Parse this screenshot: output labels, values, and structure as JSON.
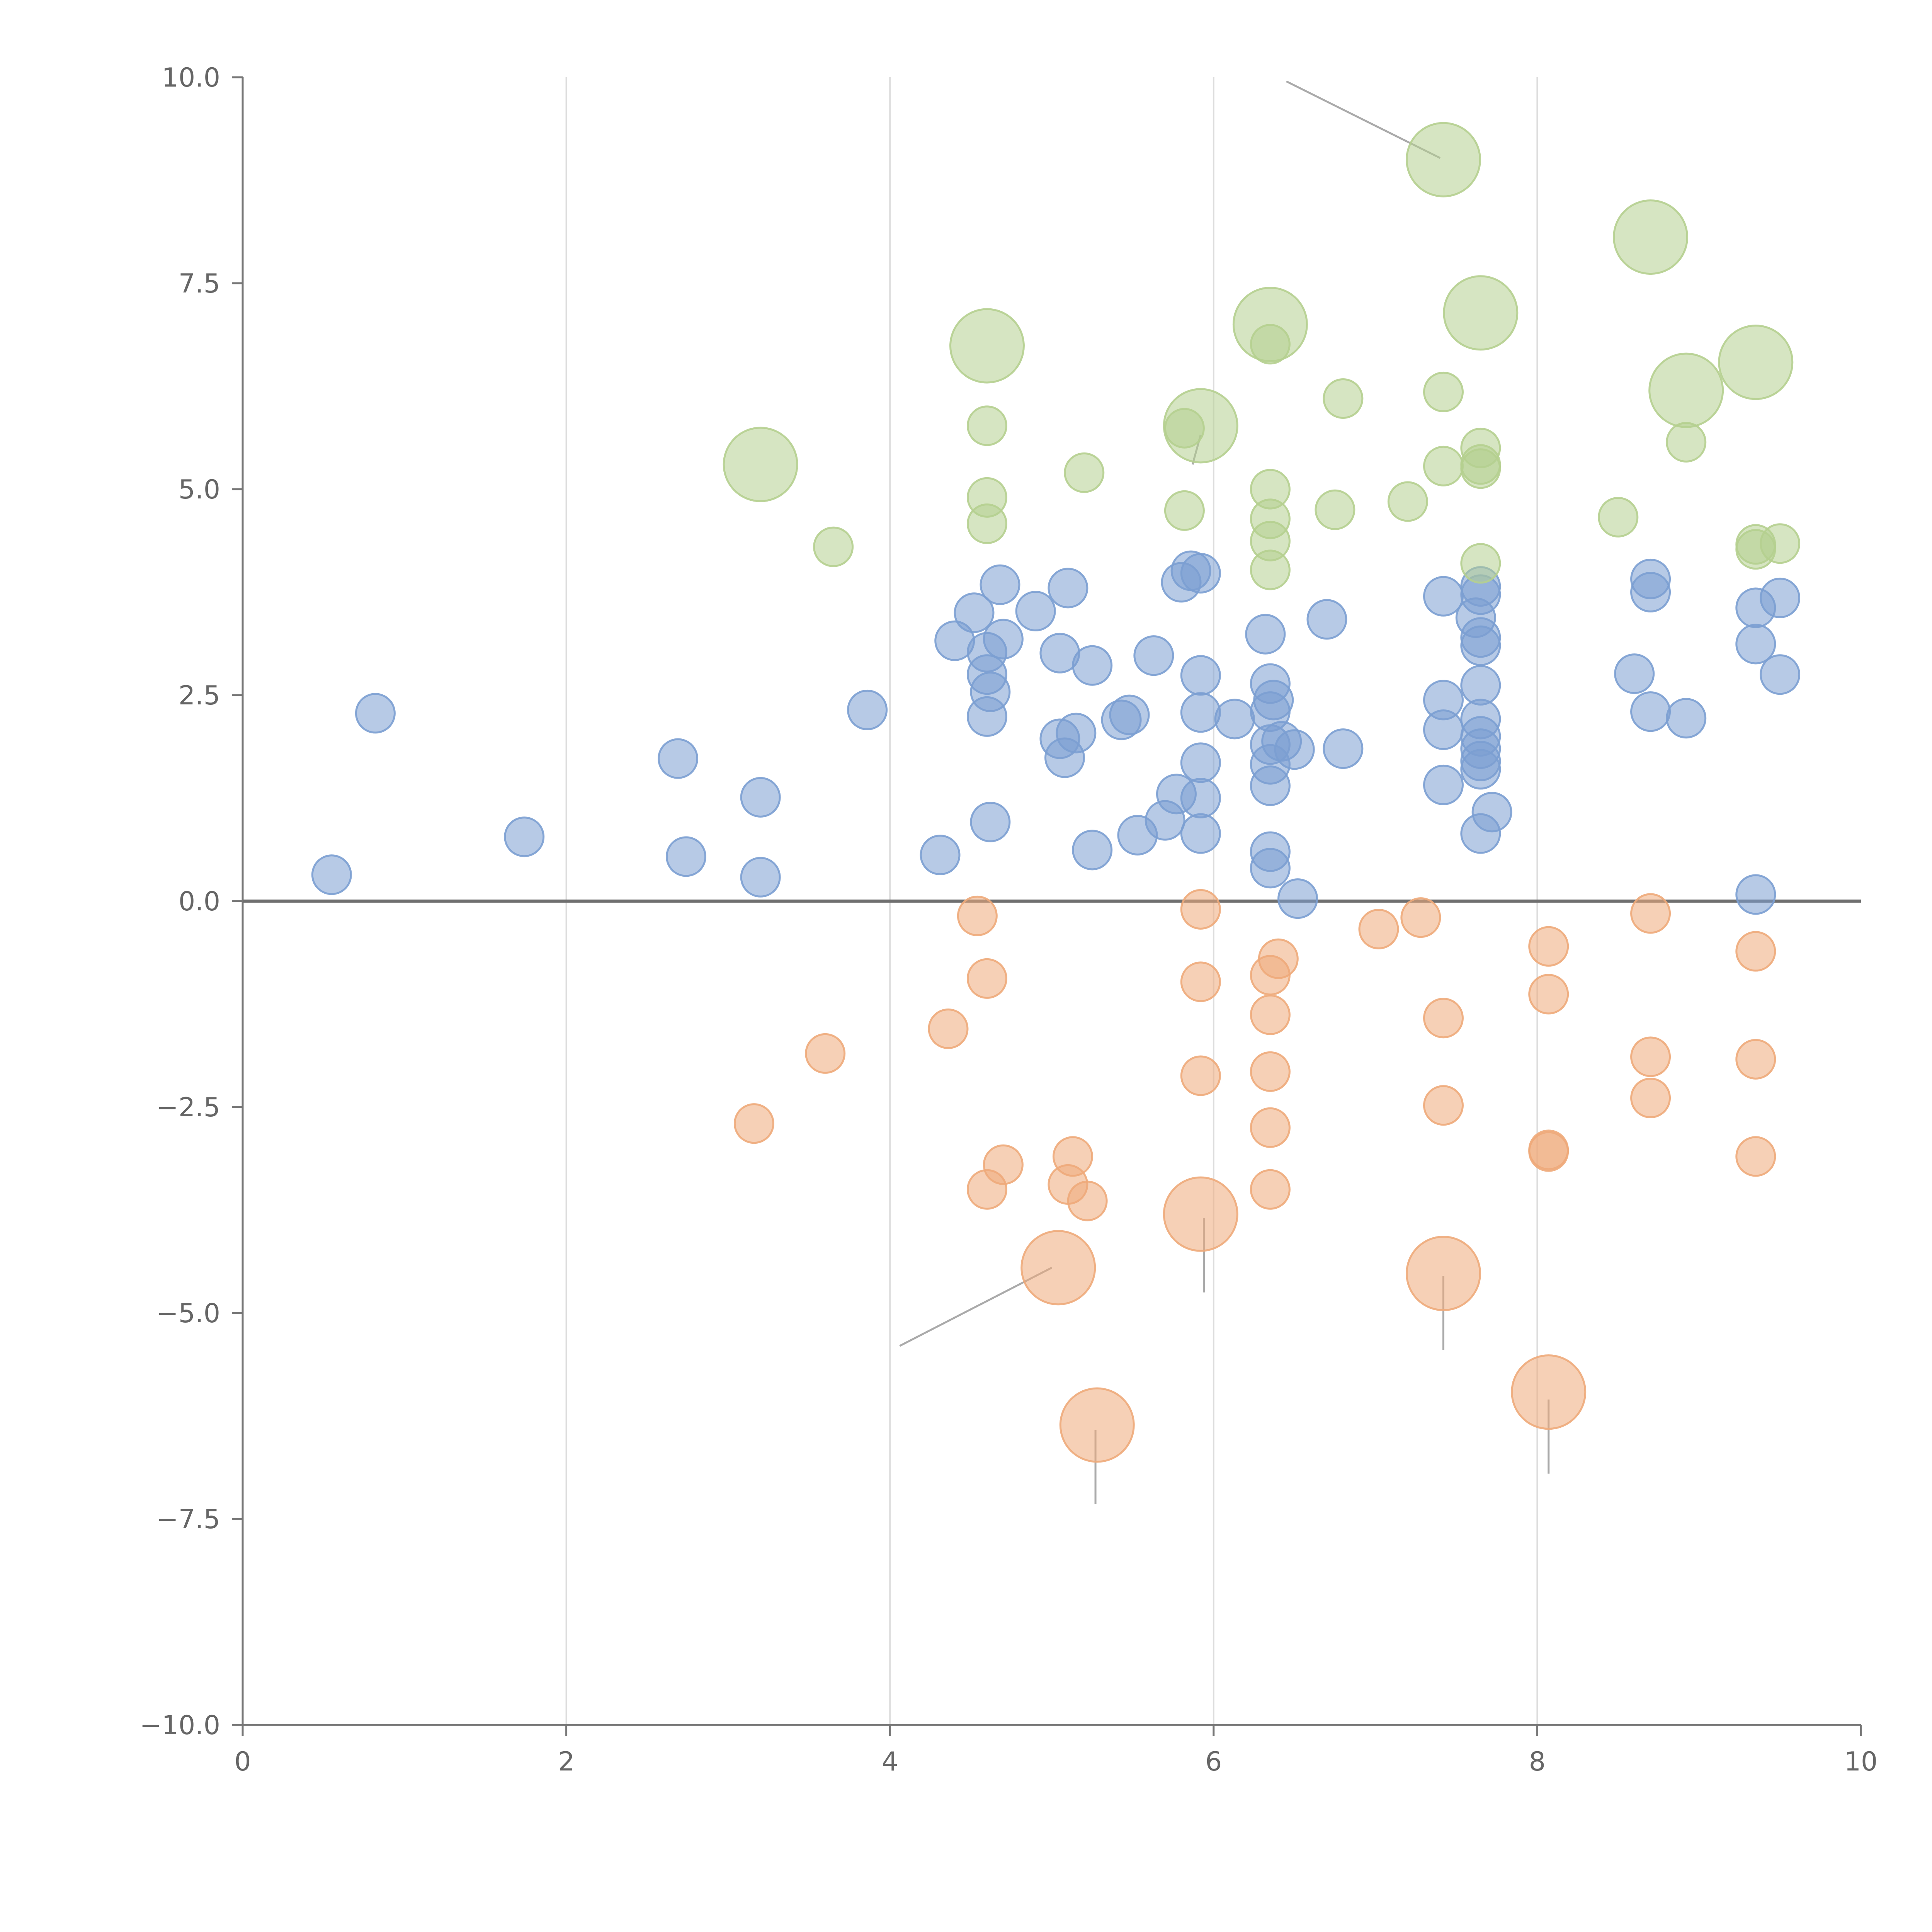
{
  "chart_data": {
    "type": "scatter",
    "title": "",
    "xlabel": "",
    "ylabel": "",
    "xlim": [
      0,
      10
    ],
    "ylim": [
      -10,
      10
    ],
    "x_ticks": [
      {
        "value": 0,
        "label": "0"
      },
      {
        "value": 2,
        "label": "2"
      },
      {
        "value": 4,
        "label": "4"
      },
      {
        "value": 6,
        "label": "6"
      },
      {
        "value": 8,
        "label": "8"
      },
      {
        "value": 10,
        "label": "10"
      }
    ],
    "y_ticks": [
      {
        "value": 10,
        "label": "10.0"
      },
      {
        "value": 7.5,
        "label": "7.5"
      },
      {
        "value": 5,
        "label": "5.0"
      },
      {
        "value": 2.5,
        "label": "2.5"
      },
      {
        "value": 0,
        "label": "0.0"
      },
      {
        "value": -2.5,
        "label": "−2.5"
      },
      {
        "value": -5,
        "label": "−5.0"
      },
      {
        "value": -7.5,
        "label": "−7.5"
      },
      {
        "value": -10,
        "label": "−10.0"
      }
    ],
    "grid": {
      "vertical": true,
      "horizontal": false,
      "zero_line": true
    },
    "series": [
      {
        "name": "blue",
        "color": "#7b9fd2",
        "size_unit": 1,
        "points": [
          [
            0.55,
            0.32
          ],
          [
            0.82,
            2.28
          ],
          [
            1.74,
            0.78
          ],
          [
            2.69,
            1.73
          ],
          [
            2.74,
            0.54
          ],
          [
            3.2,
            1.26
          ],
          [
            3.2,
            0.29
          ],
          [
            3.86,
            2.32
          ],
          [
            4.31,
            0.56
          ],
          [
            4.4,
            3.16
          ],
          [
            4.52,
            3.5
          ],
          [
            4.6,
            3.02
          ],
          [
            4.6,
            2.75
          ],
          [
            4.62,
            2.54
          ],
          [
            4.6,
            2.24
          ],
          [
            4.62,
            0.96
          ],
          [
            4.68,
            3.84
          ],
          [
            4.7,
            3.18
          ],
          [
            4.9,
            3.52
          ],
          [
            5.05,
            3.01
          ],
          [
            5.05,
            1.97
          ],
          [
            5.08,
            1.74
          ],
          [
            5.1,
            3.8
          ],
          [
            5.15,
            2.04
          ],
          [
            5.25,
            2.86
          ],
          [
            5.25,
            0.62
          ],
          [
            5.43,
            2.2
          ],
          [
            5.48,
            2.26
          ],
          [
            5.53,
            0.8
          ],
          [
            5.63,
            2.98
          ],
          [
            5.7,
            0.98
          ],
          [
            5.77,
            1.3
          ],
          [
            5.8,
            3.87
          ],
          [
            5.86,
            4.01
          ],
          [
            5.92,
            3.98
          ],
          [
            5.92,
            2.74
          ],
          [
            5.92,
            2.29
          ],
          [
            5.92,
            1.68
          ],
          [
            5.92,
            1.25
          ],
          [
            5.92,
            0.82
          ],
          [
            6.13,
            2.21
          ],
          [
            6.32,
            3.24
          ],
          [
            6.35,
            2.64
          ],
          [
            6.37,
            2.44
          ],
          [
            6.35,
            2.3
          ],
          [
            6.35,
            1.9
          ],
          [
            6.35,
            1.66
          ],
          [
            6.35,
            1.4
          ],
          [
            6.35,
            0.6
          ],
          [
            6.35,
            0.4
          ],
          [
            6.42,
            1.94
          ],
          [
            6.5,
            1.84
          ],
          [
            6.52,
            0.03
          ],
          [
            6.7,
            3.42
          ],
          [
            6.8,
            1.85
          ],
          [
            7.42,
            3.7
          ],
          [
            7.42,
            2.44
          ],
          [
            7.42,
            2.08
          ],
          [
            7.42,
            1.41
          ],
          [
            7.62,
            3.44
          ],
          [
            7.65,
            3.82
          ],
          [
            7.65,
            3.72
          ],
          [
            7.65,
            3.2
          ],
          [
            7.65,
            3.1
          ],
          [
            7.65,
            2.62
          ],
          [
            7.65,
            2.21
          ],
          [
            7.65,
            2.0
          ],
          [
            7.65,
            1.85
          ],
          [
            7.65,
            1.7
          ],
          [
            7.65,
            1.6
          ],
          [
            7.65,
            0.82
          ],
          [
            7.72,
            1.08
          ],
          [
            8.6,
            2.76
          ],
          [
            8.7,
            3.91
          ],
          [
            8.7,
            3.75
          ],
          [
            8.7,
            2.3
          ],
          [
            8.92,
            2.22
          ],
          [
            9.35,
            3.56
          ],
          [
            9.35,
            3.12
          ],
          [
            9.35,
            0.08
          ],
          [
            9.5,
            3.68
          ],
          [
            9.5,
            2.75
          ]
        ]
      },
      {
        "name": "green",
        "color": "#b5cf8f",
        "size_unit": 1,
        "points": [
          [
            3.2,
            5.3,
            2
          ],
          [
            3.65,
            4.3,
            1
          ],
          [
            4.6,
            6.74,
            2
          ],
          [
            4.6,
            5.77,
            1
          ],
          [
            4.6,
            4.9,
            1
          ],
          [
            4.6,
            4.58,
            1
          ],
          [
            5.2,
            5.2,
            1
          ],
          [
            5.82,
            5.74,
            1
          ],
          [
            5.82,
            4.74,
            1
          ],
          [
            5.92,
            5.77,
            2
          ],
          [
            6.35,
            7.0,
            2
          ],
          [
            6.35,
            6.76,
            1
          ],
          [
            6.35,
            5.0,
            1
          ],
          [
            6.35,
            4.64,
            1
          ],
          [
            6.35,
            4.37,
            1
          ],
          [
            6.35,
            4.02,
            1
          ],
          [
            6.75,
            4.75,
            1
          ],
          [
            6.8,
            6.1,
            1
          ],
          [
            7.2,
            4.85,
            1
          ],
          [
            7.42,
            9.0,
            2
          ],
          [
            7.42,
            6.18,
            1
          ],
          [
            7.42,
            5.28,
            1
          ],
          [
            7.65,
            7.14,
            2
          ],
          [
            7.65,
            5.5,
            1
          ],
          [
            7.65,
            5.3,
            1
          ],
          [
            7.65,
            5.25,
            1
          ],
          [
            7.65,
            4.1,
            1
          ],
          [
            8.5,
            4.66,
            1
          ],
          [
            8.7,
            8.06,
            2
          ],
          [
            8.92,
            6.2,
            2
          ],
          [
            8.92,
            5.57,
            1
          ],
          [
            9.35,
            6.54,
            2
          ],
          [
            9.35,
            4.33,
            1
          ],
          [
            9.35,
            4.27,
            1
          ],
          [
            9.5,
            4.34,
            1
          ]
        ]
      },
      {
        "name": "orange",
        "color": "#eeaa7a",
        "size_unit": 1,
        "points": [
          [
            3.16,
            -2.7,
            1
          ],
          [
            3.6,
            -1.85,
            1
          ],
          [
            4.36,
            -1.55,
            1
          ],
          [
            4.54,
            -0.18,
            1
          ],
          [
            4.6,
            -0.94,
            1
          ],
          [
            4.6,
            -3.5,
            1
          ],
          [
            4.7,
            -3.2,
            1
          ],
          [
            5.04,
            -4.45,
            2
          ],
          [
            5.1,
            -3.44,
            1
          ],
          [
            5.13,
            -3.1,
            1
          ],
          [
            5.22,
            -3.64,
            1
          ],
          [
            5.28,
            -6.36,
            2
          ],
          [
            5.92,
            -0.1,
            1
          ],
          [
            5.92,
            -0.98,
            1
          ],
          [
            5.92,
            -2.12,
            1
          ],
          [
            5.92,
            -3.8,
            2
          ],
          [
            6.35,
            -0.9,
            1
          ],
          [
            6.4,
            -0.7,
            1
          ],
          [
            6.35,
            -1.38,
            1
          ],
          [
            6.35,
            -2.07,
            1
          ],
          [
            6.35,
            -2.75,
            1
          ],
          [
            6.35,
            -3.5,
            1
          ],
          [
            7.02,
            -0.34,
            1
          ],
          [
            7.28,
            -0.2,
            1
          ],
          [
            7.42,
            -1.42,
            1
          ],
          [
            7.42,
            -2.48,
            1
          ],
          [
            7.42,
            -4.52,
            2
          ],
          [
            8.07,
            -0.55,
            1
          ],
          [
            8.07,
            -1.13,
            1
          ],
          [
            8.07,
            -3.02,
            1
          ],
          [
            8.07,
            -3.04,
            1
          ],
          [
            8.07,
            -5.96,
            2
          ],
          [
            8.7,
            -0.15,
            1
          ],
          [
            8.7,
            -1.89,
            1
          ],
          [
            8.7,
            -2.39,
            1
          ],
          [
            9.35,
            -0.61,
            1
          ],
          [
            9.35,
            -1.92,
            1
          ],
          [
            9.35,
            -3.1,
            1
          ]
        ]
      }
    ],
    "leader_lines": [
      [
        [
          6.45,
          9.95
        ],
        [
          7.4,
          9.02
        ]
      ],
      [
        [
          4.62,
          6.8
        ],
        [
          4.78,
          6.95
        ]
      ],
      [
        [
          6.38,
          7.05
        ],
        [
          6.48,
          7.3
        ]
      ],
      [
        [
          7.48,
          7.14
        ],
        [
          7.6,
          7.28
        ]
      ],
      [
        [
          8.72,
          8.1
        ],
        [
          8.84,
          8.3
        ]
      ],
      [
        [
          9.35,
          6.6
        ],
        [
          9.28,
          6.82
        ]
      ],
      [
        [
          8.92,
          6.2
        ],
        [
          9.0,
          6.04
        ]
      ],
      [
        [
          5.92,
          5.66
        ],
        [
          5.87,
          5.3
        ]
      ],
      [
        [
          5.0,
          -4.45
        ],
        [
          4.06,
          -5.4
        ]
      ],
      [
        [
          5.94,
          -3.85
        ],
        [
          5.94,
          -4.75
        ]
      ],
      [
        [
          7.42,
          -4.55
        ],
        [
          7.42,
          -5.45
        ]
      ],
      [
        [
          8.07,
          -6.05
        ],
        [
          8.07,
          -6.95
        ]
      ],
      [
        [
          5.27,
          -6.42
        ],
        [
          5.27,
          -7.32
        ]
      ]
    ]
  }
}
